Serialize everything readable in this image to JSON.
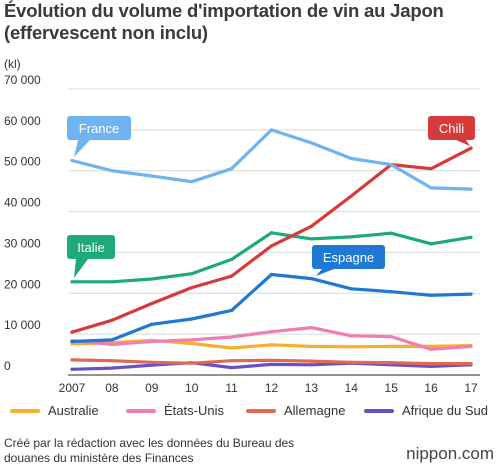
{
  "title_line1": "Évolution du volume d'importation de vin au Japon",
  "title_line2": "(effervescent non inclu)",
  "unit": "(kl)",
  "footnote_line1": "Créé par la rédaction avec les données du Bureau des",
  "footnote_line2": "douanes du ministère des Finances",
  "brand": "nippon.com",
  "chart_data": {
    "type": "line",
    "categories": [
      "2007",
      "08",
      "09",
      "10",
      "11",
      "12",
      "13",
      "14",
      "15",
      "16",
      "17"
    ],
    "ylim": [
      0,
      70000
    ],
    "yticks": [
      0,
      10000,
      20000,
      30000,
      40000,
      50000,
      60000,
      70000
    ],
    "ytick_labels": [
      "0",
      "10 000",
      "20 000",
      "30 000",
      "40 000",
      "50 000",
      "60 000",
      "70 000"
    ],
    "grid": true,
    "series": [
      {
        "name": "France",
        "color": "#6fb3f0",
        "values": [
          52500,
          50000,
          48700,
          47300,
          50500,
          60000,
          56800,
          53000,
          51500,
          45800,
          45500
        ],
        "callout": true
      },
      {
        "name": "Chili",
        "color": "#d63a3a",
        "values": [
          10500,
          13400,
          17500,
          21400,
          24200,
          31600,
          36400,
          43800,
          51500,
          50500,
          55500
        ],
        "callout": true
      },
      {
        "name": "Italie",
        "color": "#1fa87a",
        "values": [
          22800,
          22800,
          23500,
          24800,
          28300,
          34800,
          33300,
          33800,
          34700,
          32100,
          33700
        ],
        "callout": true
      },
      {
        "name": "Espagne",
        "color": "#1f78d1",
        "values": [
          8200,
          8600,
          12400,
          13700,
          15800,
          24600,
          23600,
          21100,
          20400,
          19500,
          19800
        ],
        "callout": true
      },
      {
        "name": "Australie",
        "color": "#f5b02e",
        "values": [
          7600,
          7900,
          8500,
          7700,
          6600,
          7400,
          7000,
          6900,
          7000,
          7000,
          7200
        ],
        "callout": false
      },
      {
        "name": "États-Unis",
        "color": "#f07eb2",
        "values": [
          8400,
          7500,
          8200,
          8600,
          9300,
          10600,
          11600,
          9600,
          9400,
          6300,
          7000
        ],
        "callout": false
      },
      {
        "name": "Allemagne",
        "color": "#e06a4f",
        "values": [
          3700,
          3500,
          3100,
          2900,
          3500,
          3600,
          3400,
          3100,
          3000,
          2800,
          2800
        ],
        "callout": false
      },
      {
        "name": "Afrique du Sud",
        "color": "#6a4fc9",
        "values": [
          1400,
          1700,
          2400,
          3000,
          1800,
          2600,
          2500,
          2900,
          2500,
          2100,
          2500
        ],
        "callout": false
      }
    ]
  }
}
